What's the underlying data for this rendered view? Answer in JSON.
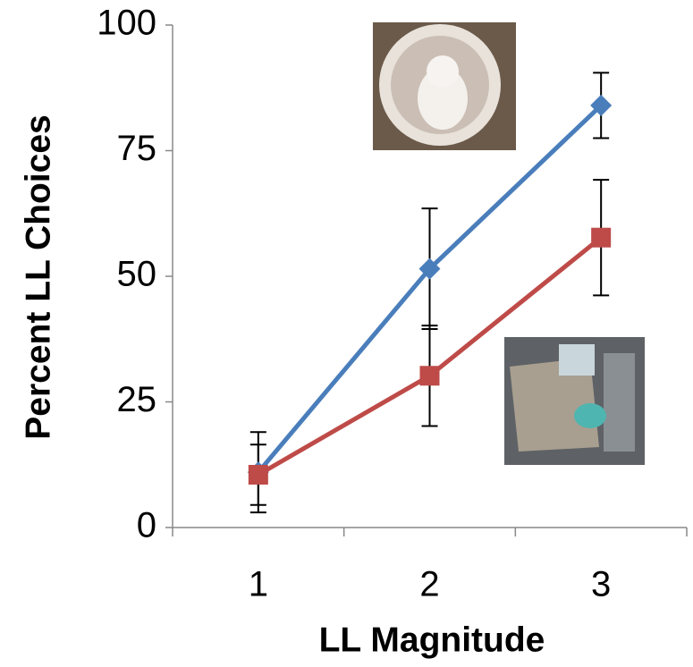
{
  "chart_data": {
    "type": "line",
    "xlabel": "LL Magnitude",
    "ylabel": "Percent LL Choices",
    "categories": [
      "1",
      "2",
      "3"
    ],
    "series": [
      {
        "color": "#4a7ebb",
        "marker": "diamond",
        "values": [
          11,
          51.5,
          84
        ],
        "errors": [
          8,
          12,
          6.5
        ]
      },
      {
        "color": "#be4b48",
        "marker": "square",
        "values": [
          10.5,
          30.2,
          57.7
        ],
        "errors": [
          6,
          10,
          11.5
        ]
      }
    ],
    "ylim": [
      0,
      100
    ],
    "yticks": [
      0,
      25,
      50,
      75,
      100
    ],
    "grid": false
  }
}
